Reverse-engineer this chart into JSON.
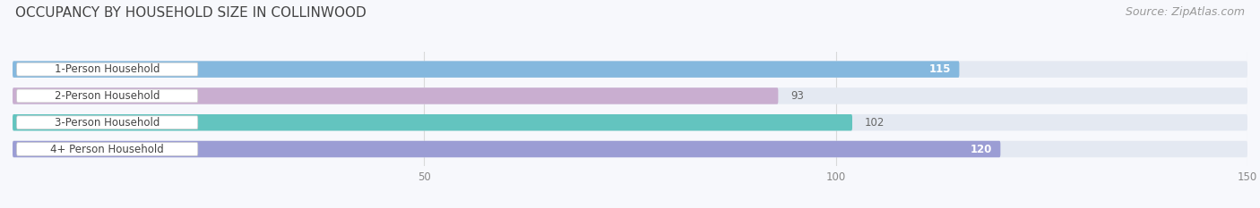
{
  "title": "OCCUPANCY BY HOUSEHOLD SIZE IN COLLINWOOD",
  "source": "Source: ZipAtlas.com",
  "categories": [
    "1-Person Household",
    "2-Person Household",
    "3-Person Household",
    "4+ Person Household"
  ],
  "values": [
    115,
    93,
    102,
    120
  ],
  "bar_colors": [
    "#85b8de",
    "#c9aed0",
    "#63c4bf",
    "#9b9dd4"
  ],
  "bar_bg_color": "#e4e9f2",
  "xlim": [
    0,
    150
  ],
  "xticks": [
    50,
    100,
    150
  ],
  "value_label_inside": [
    true,
    false,
    false,
    true
  ],
  "title_fontsize": 11,
  "source_fontsize": 9,
  "bar_height": 0.62,
  "background_color": "#f7f8fc"
}
